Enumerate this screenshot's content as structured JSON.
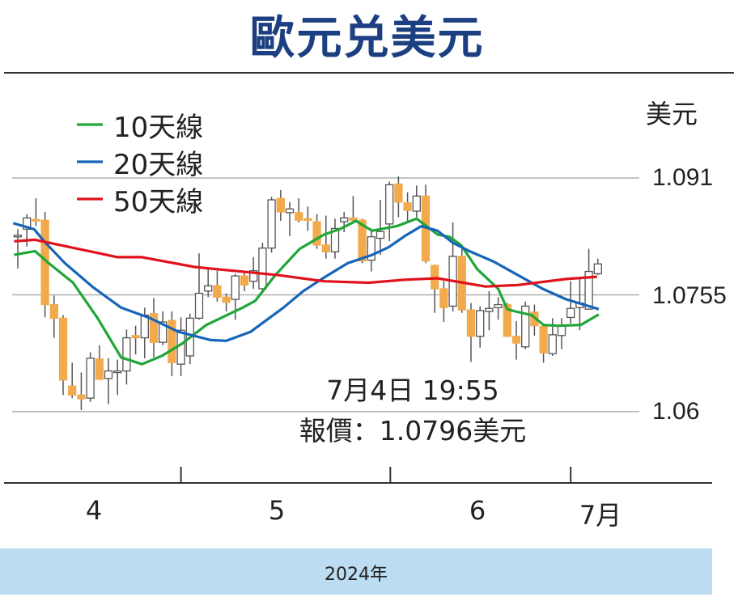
{
  "chart_data": {
    "type": "candlestick",
    "title": "歐元兑美元",
    "ylabel": "美元",
    "xlabel": "2024年",
    "ylim": [
      1.0565,
      1.0935
    ],
    "yticks": [
      {
        "value": 1.091,
        "label": "1.091"
      },
      {
        "value": 1.0755,
        "label": "1.0755"
      },
      {
        "value": 1.06,
        "label": "1.06"
      }
    ],
    "xticks": [
      {
        "label": "4",
        "index": 8.3
      },
      {
        "label": "5",
        "index": 28.6
      },
      {
        "label": "6",
        "index": 50.7
      },
      {
        "label": "7月",
        "index": 64.5
      }
    ],
    "month_dividers": [
      18.0,
      41.1,
      61.0
    ],
    "grid": true,
    "legend_position": "top-left",
    "candle_format": [
      "open",
      "high",
      "low",
      "close"
    ],
    "candles": [
      [
        1.0834,
        1.0842,
        1.079,
        1.0834
      ],
      [
        1.0842,
        1.0862,
        1.0819,
        1.0857
      ],
      [
        1.0855,
        1.0883,
        1.0846,
        1.0854
      ],
      [
        1.0854,
        1.0865,
        1.0725,
        1.0742
      ],
      [
        1.0742,
        1.0754,
        1.0698,
        1.0724
      ],
      [
        1.0724,
        1.0728,
        1.0622,
        1.0642
      ],
      [
        1.0634,
        1.0665,
        1.0618,
        1.0622
      ],
      [
        1.0622,
        1.0652,
        1.0602,
        1.0617
      ],
      [
        1.0618,
        1.0679,
        1.0613,
        1.0671
      ],
      [
        1.067,
        1.0688,
        1.0642,
        1.0643
      ],
      [
        1.0644,
        1.0671,
        1.061,
        1.0654
      ],
      [
        1.0654,
        1.0669,
        1.0622,
        1.0654
      ],
      [
        1.0654,
        1.0709,
        1.0636,
        1.0698
      ],
      [
        1.0701,
        1.0714,
        1.0676,
        1.0698
      ],
      [
        1.0698,
        1.0738,
        1.0671,
        1.0728
      ],
      [
        1.073,
        1.0751,
        1.0672,
        1.0692
      ],
      [
        1.0692,
        1.0733,
        1.0688,
        1.0719
      ],
      [
        1.0721,
        1.0733,
        1.0647,
        1.0665
      ],
      [
        1.0663,
        1.0725,
        1.0647,
        1.0708
      ],
      [
        1.0674,
        1.073,
        1.0663,
        1.0724
      ],
      [
        1.0724,
        1.081,
        1.0722,
        1.0757
      ],
      [
        1.076,
        1.0789,
        1.0752,
        1.0767
      ],
      [
        1.0767,
        1.0787,
        1.0746,
        1.0752
      ],
      [
        1.0752,
        1.0757,
        1.0733,
        1.0745
      ],
      [
        1.0749,
        1.0783,
        1.0722,
        1.078
      ],
      [
        1.078,
        1.0787,
        1.076,
        1.0768
      ],
      [
        1.0773,
        1.0805,
        1.0763,
        1.0787
      ],
      [
        1.0763,
        1.0824,
        1.076,
        1.0817
      ],
      [
        1.0817,
        1.0885,
        1.0811,
        1.0881
      ],
      [
        1.0883,
        1.0894,
        1.0853,
        1.0865
      ],
      [
        1.0864,
        1.0878,
        1.0833,
        1.0869
      ],
      [
        1.0864,
        1.0883,
        1.0851,
        1.0854
      ],
      [
        1.0856,
        1.0872,
        1.084,
        1.0854
      ],
      [
        1.0852,
        1.0862,
        1.0816,
        1.0821
      ],
      [
        1.0821,
        1.086,
        1.0803,
        1.0812
      ],
      [
        1.0812,
        1.0856,
        1.0803,
        1.0843
      ],
      [
        1.0852,
        1.0865,
        1.0838,
        1.0857
      ],
      [
        1.0857,
        1.0886,
        1.0853,
        1.0854
      ],
      [
        1.0854,
        1.0856,
        1.0797,
        1.08
      ],
      [
        1.0801,
        1.0843,
        1.0786,
        1.0832
      ],
      [
        1.083,
        1.0881,
        1.0808,
        1.0839
      ],
      [
        1.0849,
        1.0905,
        1.0826,
        1.0901
      ],
      [
        1.0902,
        1.0912,
        1.0858,
        1.0878
      ],
      [
        1.0877,
        1.0891,
        1.0851,
        1.0867
      ],
      [
        1.0866,
        1.09,
        1.0858,
        1.0886
      ],
      [
        1.0886,
        1.0901,
        1.0797,
        1.08
      ],
      [
        1.0794,
        1.0795,
        1.0731,
        1.0763
      ],
      [
        1.0763,
        1.0773,
        1.0719,
        1.0738
      ],
      [
        1.074,
        1.0851,
        1.0733,
        1.0806
      ],
      [
        1.0806,
        1.0816,
        1.0731,
        1.0735
      ],
      [
        1.0735,
        1.0744,
        1.0666,
        1.07
      ],
      [
        1.07,
        1.074,
        1.0685,
        1.0734
      ],
      [
        1.0733,
        1.076,
        1.0708,
        1.0737
      ],
      [
        1.0738,
        1.0752,
        1.0722,
        1.0742
      ],
      [
        1.0742,
        1.0744,
        1.0699,
        1.07
      ],
      [
        1.07,
        1.072,
        1.0669,
        1.0691
      ],
      [
        1.0686,
        1.0746,
        1.0683,
        1.074
      ],
      [
        1.0732,
        1.0742,
        1.0701,
        1.0714
      ],
      [
        1.0713,
        1.0714,
        1.0665,
        1.0678
      ],
      [
        1.0677,
        1.0724,
        1.0674,
        1.0702
      ],
      [
        1.0701,
        1.0724,
        1.0683,
        1.0714
      ],
      [
        1.0725,
        1.0773,
        1.0717,
        1.0737
      ],
      [
        1.0738,
        1.0776,
        1.0708,
        1.0744
      ],
      [
        1.0736,
        1.0816,
        1.0735,
        1.0786
      ],
      [
        1.0783,
        1.0803,
        1.0781,
        1.0796
      ]
    ],
    "series": [
      {
        "name": "10天線",
        "color": "#1fa637",
        "points": [
          [
            -0.4,
            1.0808
          ],
          [
            1.9,
            1.0813
          ],
          [
            3.4,
            1.0797
          ],
          [
            6.1,
            1.0771
          ],
          [
            8.8,
            1.0724
          ],
          [
            11.4,
            1.0672
          ],
          [
            13.7,
            1.0663
          ],
          [
            15.9,
            1.0674
          ],
          [
            18.1,
            1.069
          ],
          [
            20.8,
            1.0715
          ],
          [
            24.8,
            1.0738
          ],
          [
            26.2,
            1.0747
          ],
          [
            28.4,
            1.0781
          ],
          [
            31.1,
            1.0816
          ],
          [
            33.8,
            1.0835
          ],
          [
            35.5,
            1.0842
          ],
          [
            37.3,
            1.0853
          ],
          [
            39.1,
            1.084
          ],
          [
            41.8,
            1.0846
          ],
          [
            44.0,
            1.0856
          ],
          [
            46.3,
            1.0835
          ],
          [
            47.6,
            1.0832
          ],
          [
            48.9,
            1.0821
          ],
          [
            50.7,
            1.0789
          ],
          [
            53.0,
            1.0763
          ],
          [
            54.0,
            1.0736
          ],
          [
            54.9,
            1.0733
          ],
          [
            56.7,
            1.0728
          ],
          [
            58.0,
            1.0715
          ],
          [
            59.6,
            1.0714
          ],
          [
            62.1,
            1.0715
          ],
          [
            64.1,
            1.0729
          ]
        ]
      },
      {
        "name": "20天線",
        "color": "#1565b8",
        "points": [
          [
            -0.5,
            1.085
          ],
          [
            1.8,
            1.0842
          ],
          [
            2.9,
            1.0826
          ],
          [
            5.2,
            1.0797
          ],
          [
            8.3,
            1.0765
          ],
          [
            11.4,
            1.0738
          ],
          [
            14.6,
            1.0724
          ],
          [
            17.7,
            1.0706
          ],
          [
            21.3,
            1.0695
          ],
          [
            23.0,
            1.0694
          ],
          [
            25.7,
            1.0706
          ],
          [
            29.3,
            1.0738
          ],
          [
            31.5,
            1.076
          ],
          [
            33.8,
            1.0778
          ],
          [
            36.4,
            1.0797
          ],
          [
            39.1,
            1.0808
          ],
          [
            40.9,
            1.0818
          ],
          [
            42.7,
            1.0833
          ],
          [
            44.5,
            1.0846
          ],
          [
            46.3,
            1.084
          ],
          [
            48.0,
            1.0824
          ],
          [
            49.8,
            1.0813
          ],
          [
            52.5,
            1.0799
          ],
          [
            55.2,
            1.0781
          ],
          [
            57.9,
            1.0763
          ],
          [
            60.5,
            1.0749
          ],
          [
            64.1,
            1.0736
          ]
        ]
      },
      {
        "name": "50天線",
        "color": "#e0121b",
        "points": [
          [
            -0.4,
            1.0826
          ],
          [
            1.9,
            1.0828
          ],
          [
            11.0,
            1.0805
          ],
          [
            13.7,
            1.0805
          ],
          [
            19.5,
            1.0792
          ],
          [
            28.8,
            1.0781
          ],
          [
            33.8,
            1.0773
          ],
          [
            38.7,
            1.0771
          ],
          [
            42.7,
            1.0775
          ],
          [
            46.3,
            1.0777
          ],
          [
            51.6,
            1.0766
          ],
          [
            55.2,
            1.0768
          ],
          [
            60.5,
            1.0776
          ],
          [
            63.9,
            1.0779
          ]
        ]
      }
    ],
    "up_color": "#ffffff",
    "down_color": "#f2aa4c",
    "annotation": {
      "date": "7月4日 19:55",
      "quote": "報價：1.0796美元"
    }
  }
}
